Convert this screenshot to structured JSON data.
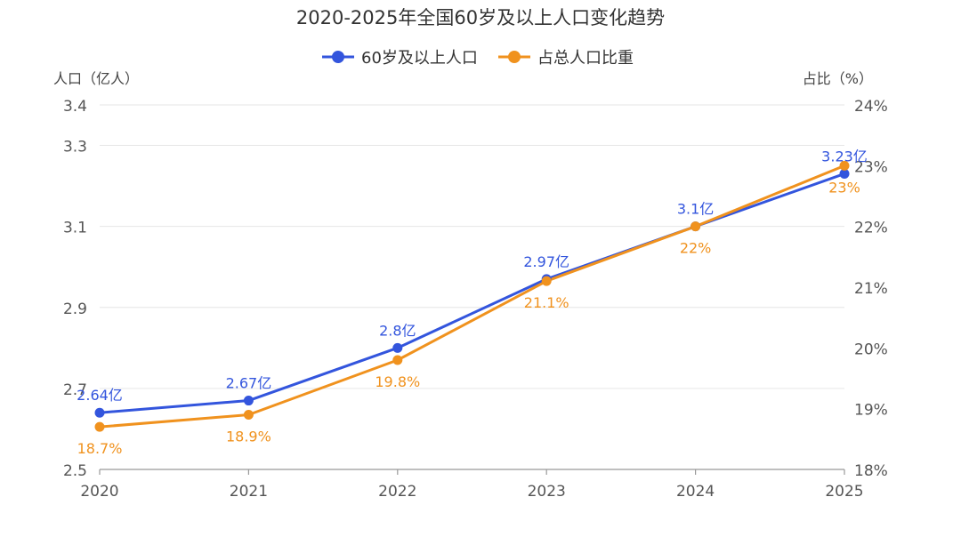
{
  "chart_data": {
    "type": "line",
    "title": "2020-2025年全国60岁及以上人口变化趋势",
    "x": [
      "2020",
      "2021",
      "2022",
      "2023",
      "2024",
      "2025"
    ],
    "y_left": {
      "label": "人口（亿人）",
      "ticks": [
        "2.5",
        "2.7",
        "2.9",
        "3.1",
        "3.3",
        "3.4"
      ],
      "tick_values": [
        2.5,
        2.7,
        2.9,
        3.1,
        3.3,
        3.4
      ],
      "range": [
        2.5,
        3.4
      ]
    },
    "y_right": {
      "label": "占比（%）",
      "ticks": [
        "18%",
        "19%",
        "20%",
        "21%",
        "22%",
        "23%",
        "24%"
      ],
      "tick_values": [
        18,
        19,
        20,
        21,
        22,
        23,
        24
      ],
      "range": [
        18,
        24
      ]
    },
    "grid": true,
    "legend_position": "top-center",
    "series": [
      {
        "name": "60岁及以上人口",
        "axis": "left",
        "color": "#3355dd",
        "values": [
          2.64,
          2.67,
          2.8,
          2.97,
          3.1,
          3.23
        ],
        "labels": [
          "2.64亿",
          "2.67亿",
          "2.8亿",
          "2.97亿",
          "3.1亿",
          "3.23亿"
        ]
      },
      {
        "name": "占总人口比重",
        "axis": "right",
        "color": "#f0921e",
        "values": [
          18.7,
          18.9,
          19.8,
          21.1,
          22,
          23
        ],
        "labels": [
          "18.7%",
          "18.9%",
          "19.8%",
          "21.1%",
          "22%",
          "23%"
        ]
      }
    ]
  }
}
